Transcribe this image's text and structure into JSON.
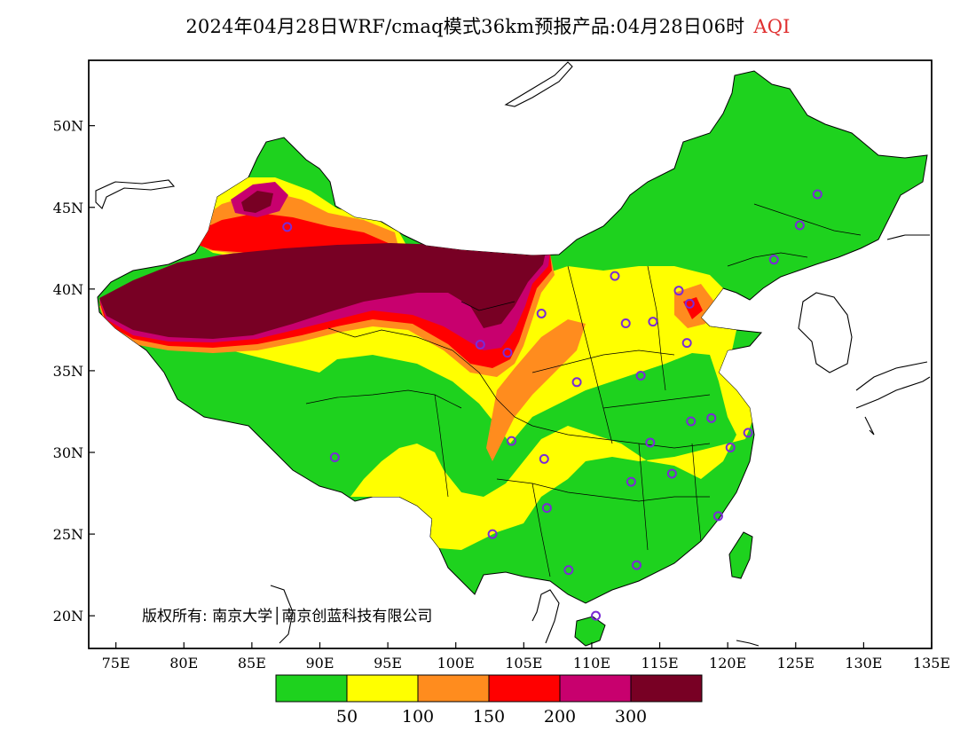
{
  "title": {
    "main": "2024年04月28日WRF/cmaq模式36km预报产品:04月28日06时",
    "variable": "AQI",
    "variable_color": "#e03030"
  },
  "map": {
    "lon_range": [
      73,
      135
    ],
    "lat_range": [
      18,
      54
    ],
    "lat_ticks": [
      "20N",
      "25N",
      "30N",
      "35N",
      "40N",
      "45N",
      "50N"
    ],
    "lon_ticks": [
      "75E",
      "80E",
      "85E",
      "90E",
      "95E",
      "100E",
      "105E",
      "110E",
      "115E",
      "120E",
      "125E",
      "130E",
      "135E"
    ],
    "copyright": "版权所有: 南京大学│南京创蓝科技有限公司"
  },
  "legend": {
    "colors": [
      "#1ed21e",
      "#ffff00",
      "#ff8c1e",
      "#ff0000",
      "#c8006e",
      "#780024"
    ],
    "labels": [
      "50",
      "100",
      "150",
      "200",
      "300"
    ]
  },
  "stations": [
    [
      87.6,
      43.8
    ],
    [
      91.1,
      29.7
    ],
    [
      101.8,
      36.6
    ],
    [
      103.8,
      36.1
    ],
    [
      106.3,
      38.5
    ],
    [
      111.7,
      40.8
    ],
    [
      112.5,
      37.9
    ],
    [
      114.5,
      38.0
    ],
    [
      116.4,
      39.9
    ],
    [
      117.2,
      39.1
    ],
    [
      123.4,
      41.8
    ],
    [
      125.3,
      43.9
    ],
    [
      126.6,
      45.8
    ],
    [
      117.0,
      36.7
    ],
    [
      113.6,
      34.7
    ],
    [
      108.9,
      34.3
    ],
    [
      104.1,
      30.7
    ],
    [
      106.5,
      29.6
    ],
    [
      106.7,
      26.6
    ],
    [
      102.7,
      25.0
    ],
    [
      108.3,
      22.8
    ],
    [
      110.3,
      20.0
    ],
    [
      113.3,
      23.1
    ],
    [
      112.9,
      28.2
    ],
    [
      115.9,
      28.7
    ],
    [
      114.3,
      30.6
    ],
    [
      117.3,
      31.9
    ],
    [
      118.8,
      32.1
    ],
    [
      120.2,
      30.3
    ],
    [
      121.5,
      31.2
    ],
    [
      119.3,
      26.1
    ]
  ]
}
